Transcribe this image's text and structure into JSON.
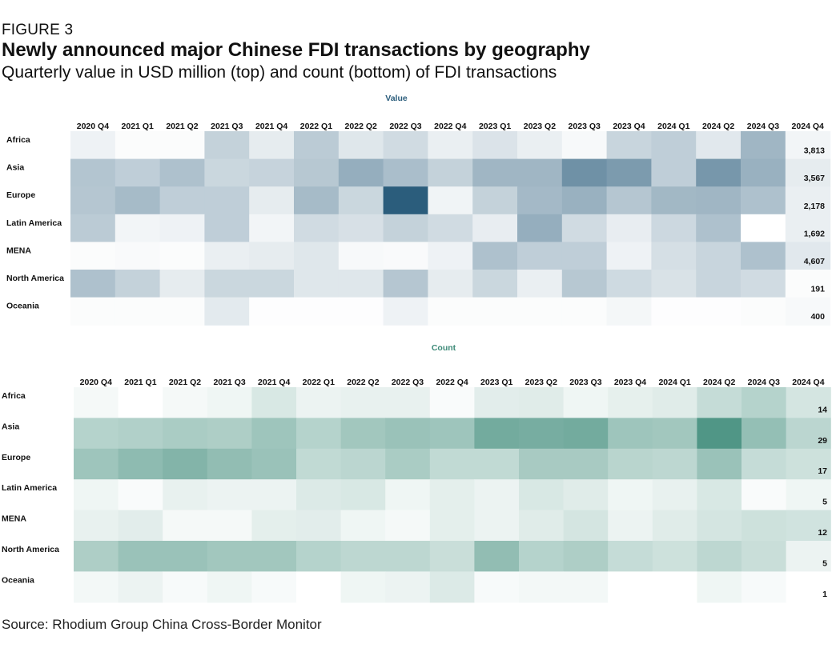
{
  "figure_label": "FIGURE 3",
  "title": "Newly announced major Chinese FDI transactions by geography",
  "subtitle": "Quarterly value in USD million (top) and count (bottom) of FDI transactions",
  "source": "Source: Rhodium Group China Cross-Border Monitor",
  "colors": {
    "value": "#2b5d7c",
    "count": "#3d8a78"
  },
  "chart_data": [
    {
      "type": "heatmap",
      "title": "Value",
      "columns": [
        "2020 Q4",
        "2021 Q1",
        "2021 Q2",
        "2021 Q3",
        "2021 Q4",
        "2022 Q1",
        "2022 Q2",
        "2022 Q3",
        "2022 Q4",
        "2023 Q1",
        "2023 Q2",
        "2023 Q3",
        "2023 Q4",
        "2024 Q1",
        "2024 Q2",
        "2024 Q3",
        "2024 Q4"
      ],
      "rows": [
        "Africa",
        "Asia",
        "Europe",
        "Latin America",
        "MENA",
        "North America",
        "Oceania"
      ],
      "intensity_scale": [
        0,
        1
      ],
      "intensity": [
        [
          0.08,
          0.02,
          0.02,
          0.28,
          0.12,
          0.32,
          0.15,
          0.22,
          0.1,
          0.17,
          0.1,
          0.04,
          0.26,
          0.3,
          0.14,
          0.45,
          0.06
        ],
        [
          0.36,
          0.3,
          0.38,
          0.25,
          0.27,
          0.34,
          0.5,
          0.4,
          0.28,
          0.45,
          0.45,
          0.68,
          0.62,
          0.3,
          0.64,
          0.48,
          0.12
        ],
        [
          0.35,
          0.42,
          0.3,
          0.3,
          0.12,
          0.42,
          0.25,
          1.0,
          0.07,
          0.28,
          0.43,
          0.48,
          0.35,
          0.44,
          0.45,
          0.38,
          0.1
        ],
        [
          0.32,
          0.06,
          0.08,
          0.3,
          0.06,
          0.22,
          0.19,
          0.28,
          0.22,
          0.11,
          0.5,
          0.22,
          0.11,
          0.24,
          0.38,
          0.0,
          0.1
        ],
        [
          0.02,
          0.03,
          0.02,
          0.1,
          0.12,
          0.15,
          0.04,
          0.03,
          0.08,
          0.38,
          0.3,
          0.3,
          0.08,
          0.2,
          0.26,
          0.38,
          0.14
        ],
        [
          0.38,
          0.28,
          0.12,
          0.25,
          0.25,
          0.15,
          0.15,
          0.35,
          0.12,
          0.25,
          0.1,
          0.34,
          0.23,
          0.18,
          0.26,
          0.22,
          0.02
        ],
        [
          0.02,
          0.02,
          0.02,
          0.13,
          0.01,
          0.01,
          0.01,
          0.08,
          0.02,
          0.02,
          0.02,
          0.02,
          0.05,
          0.01,
          0.01,
          0.02,
          0.04
        ]
      ],
      "totals": [
        "3,813",
        "3,567",
        "2,178",
        "1,692",
        "4,607",
        "191",
        "400"
      ]
    },
    {
      "type": "heatmap",
      "title": "Count",
      "columns": [
        "2020 Q4",
        "2021 Q1",
        "2021 Q2",
        "2021 Q3",
        "2021 Q4",
        "2022 Q1",
        "2022 Q2",
        "2022 Q3",
        "2022 Q4",
        "2023 Q1",
        "2023 Q2",
        "2023 Q3",
        "2023 Q4",
        "2024 Q1",
        "2024 Q2",
        "2024 Q3",
        "2024 Q4"
      ],
      "rows": [
        "Africa",
        "Asia",
        "Europe",
        "Latin America",
        "MENA",
        "North America",
        "Oceania"
      ],
      "intensity_scale": [
        0,
        1
      ],
      "intensity": [
        [
          0.05,
          0.0,
          0.05,
          0.08,
          0.2,
          0.1,
          0.12,
          0.12,
          0.03,
          0.15,
          0.16,
          0.08,
          0.13,
          0.16,
          0.3,
          0.38,
          0.22
        ],
        [
          0.38,
          0.4,
          0.44,
          0.42,
          0.5,
          0.38,
          0.48,
          0.52,
          0.5,
          0.72,
          0.7,
          0.72,
          0.5,
          0.48,
          0.9,
          0.55,
          0.35
        ],
        [
          0.5,
          0.58,
          0.64,
          0.56,
          0.52,
          0.32,
          0.35,
          0.44,
          0.32,
          0.32,
          0.45,
          0.45,
          0.36,
          0.34,
          0.52,
          0.3,
          0.26
        ],
        [
          0.08,
          0.03,
          0.12,
          0.1,
          0.1,
          0.18,
          0.2,
          0.08,
          0.14,
          0.1,
          0.2,
          0.16,
          0.08,
          0.12,
          0.2,
          0.03,
          0.08
        ],
        [
          0.12,
          0.15,
          0.05,
          0.05,
          0.14,
          0.15,
          0.08,
          0.05,
          0.14,
          0.1,
          0.16,
          0.22,
          0.1,
          0.16,
          0.22,
          0.26,
          0.24
        ],
        [
          0.42,
          0.52,
          0.52,
          0.48,
          0.48,
          0.38,
          0.34,
          0.34,
          0.28,
          0.56,
          0.38,
          0.42,
          0.3,
          0.26,
          0.34,
          0.28,
          0.1
        ],
        [
          0.06,
          0.1,
          0.04,
          0.08,
          0.04,
          0.0,
          0.08,
          0.1,
          0.18,
          0.04,
          0.06,
          0.06,
          0.0,
          0.0,
          0.08,
          0.04,
          0.0
        ]
      ],
      "totals": [
        "14",
        "29",
        "17",
        "5",
        "12",
        "5",
        "1"
      ]
    }
  ]
}
